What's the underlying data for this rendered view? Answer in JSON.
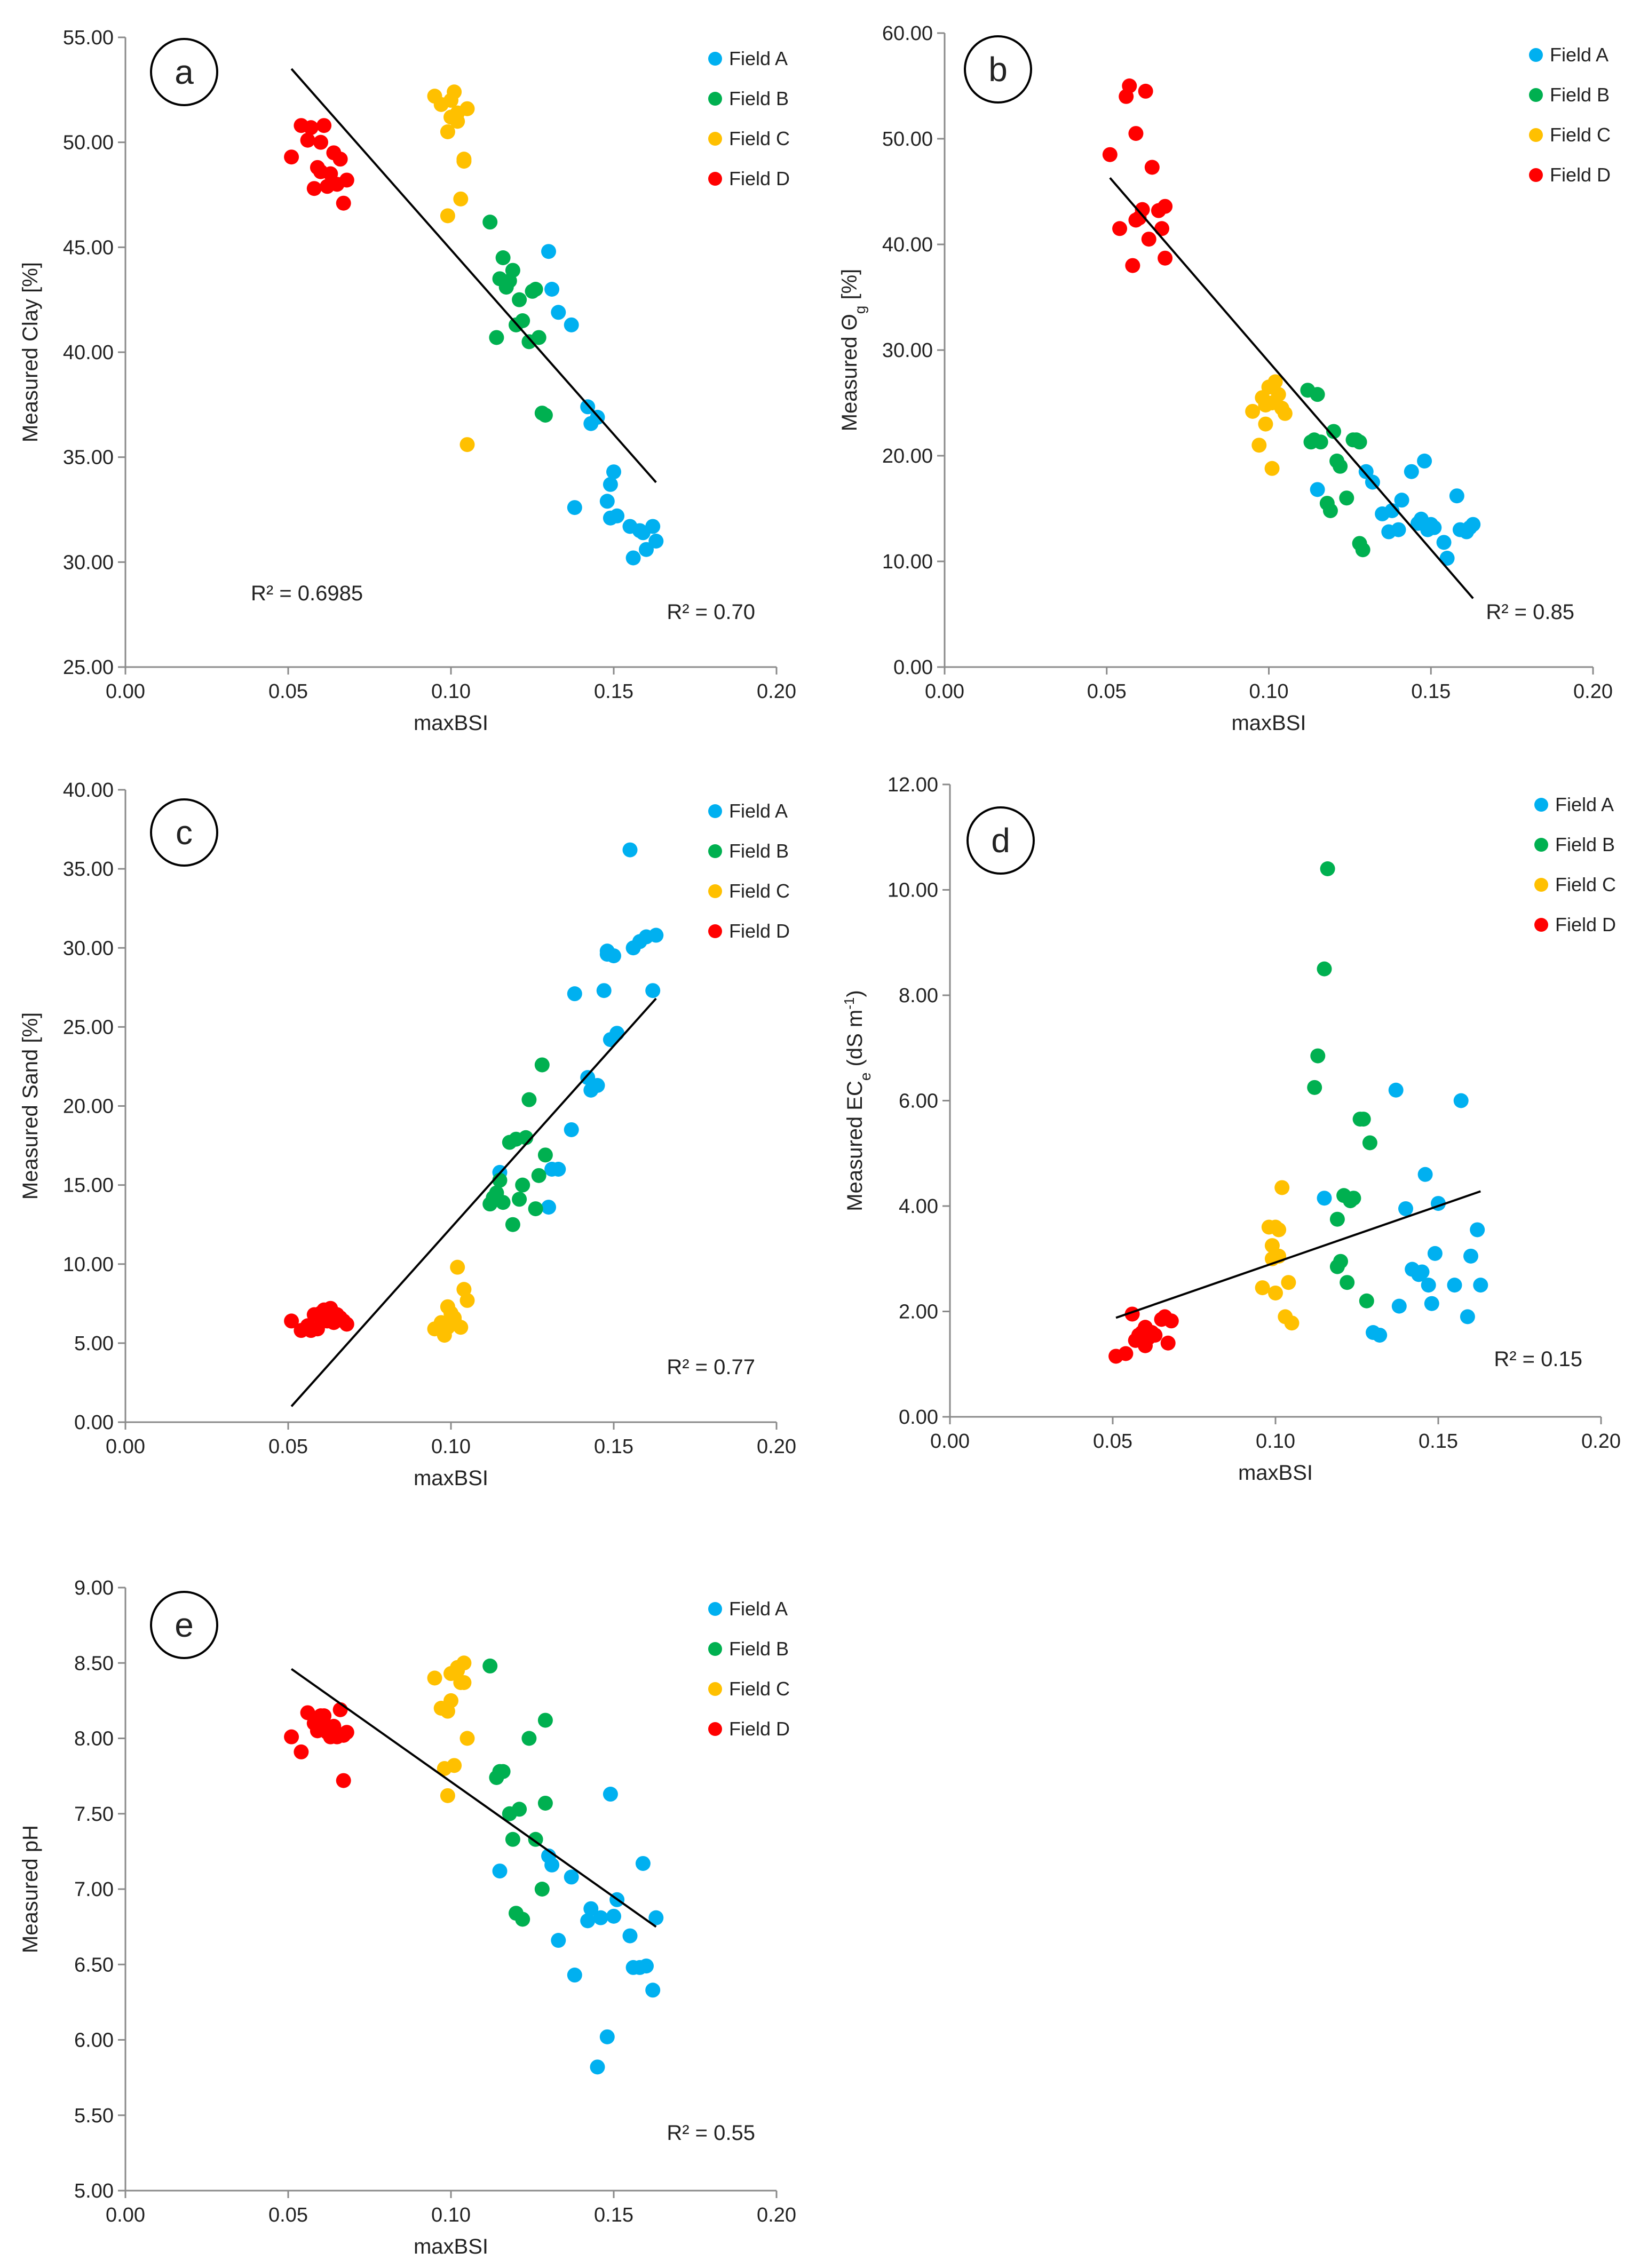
{
  "chart_data": [
    {
      "panel": "a",
      "type": "scatter",
      "xlabel": "maxBSI",
      "ylabel": "Measured Clay [%]",
      "ylabel_parts": [
        {
          "t": "Measured Clay [%]"
        }
      ],
      "xlim": [
        0,
        0.2
      ],
      "ylim": [
        25,
        55
      ],
      "xticks": [
        "0.00",
        "0.05",
        "0.10",
        "0.15",
        "0.20"
      ],
      "yticks": [
        "25.00",
        "30.00",
        "35.00",
        "40.00",
        "45.00",
        "50.00",
        "55.00"
      ],
      "legend": [
        "Field A",
        "Field B",
        "Field C",
        "Field D"
      ],
      "legend_pos": "top-right",
      "trendline": {
        "x": [
          0.051,
          0.163
        ],
        "y": [
          53.5,
          33.8
        ]
      },
      "annotations": [
        {
          "text": "R² = 0.70",
          "pos": "bottom-right"
        },
        {
          "text": "R² = 0.6985",
          "pos": "bottom-left"
        }
      ],
      "series": [
        {
          "name": "Field A",
          "x": [
            0.13,
            0.131,
            0.133,
            0.137,
            0.142,
            0.143,
            0.145,
            0.148,
            0.149,
            0.15,
            0.151,
            0.138,
            0.155,
            0.156,
            0.158,
            0.16,
            0.162,
            0.163,
            0.159,
            0.149
          ],
          "y": [
            44.8,
            43.0,
            41.9,
            41.3,
            37.4,
            36.6,
            36.9,
            32.9,
            33.7,
            34.3,
            32.2,
            32.6,
            31.7,
            30.2,
            31.5,
            30.6,
            31.7,
            31.0,
            31.4,
            32.1
          ]
        },
        {
          "name": "Field B",
          "x": [
            0.112,
            0.115,
            0.116,
            0.118,
            0.119,
            0.12,
            0.121,
            0.122,
            0.124,
            0.126,
            0.127,
            0.128,
            0.129,
            0.114,
            0.125,
            0.117
          ],
          "y": [
            46.2,
            43.5,
            44.5,
            43.4,
            43.9,
            41.3,
            42.5,
            41.5,
            40.5,
            43.0,
            40.7,
            37.1,
            37.0,
            40.7,
            42.9,
            43.1
          ]
        },
        {
          "name": "Field C",
          "x": [
            0.095,
            0.097,
            0.099,
            0.1,
            0.101,
            0.102,
            0.103,
            0.104,
            0.105,
            0.099,
            0.102,
            0.104,
            0.1,
            0.105
          ],
          "y": [
            52.2,
            51.8,
            50.5,
            51.2,
            52.4,
            51.0,
            47.3,
            49.2,
            51.6,
            46.5,
            51.4,
            49.1,
            52.0,
            35.6
          ]
        },
        {
          "name": "Field D",
          "x": [
            0.051,
            0.054,
            0.056,
            0.058,
            0.059,
            0.06,
            0.061,
            0.062,
            0.063,
            0.064,
            0.065,
            0.066,
            0.067,
            0.068,
            0.057,
            0.06
          ],
          "y": [
            49.3,
            50.8,
            50.1,
            47.8,
            48.8,
            50.0,
            50.8,
            47.9,
            48.5,
            49.5,
            48.0,
            49.2,
            47.1,
            48.2,
            50.7,
            48.6
          ]
        }
      ]
    },
    {
      "panel": "b",
      "type": "scatter",
      "xlabel": "maxBSI",
      "ylabel": "Measured Θg [%]",
      "ylabel_parts": [
        {
          "t": "Measured Θ"
        },
        {
          "t": "g",
          "sub": true
        },
        {
          "t": " [%]"
        }
      ],
      "xlim": [
        0,
        0.2
      ],
      "ylim": [
        0,
        60
      ],
      "xticks": [
        "0.00",
        "0.05",
        "0.10",
        "0.15",
        "0.20"
      ],
      "yticks": [
        "0.00",
        "10.00",
        "20.00",
        "30.00",
        "40.00",
        "50.00",
        "60.00"
      ],
      "legend": [
        "Field A",
        "Field B",
        "Field C",
        "Field D"
      ],
      "legend_pos": "top-right",
      "trendline": {
        "x": [
          0.051,
          0.163
        ],
        "y": [
          46.3,
          6.5
        ]
      },
      "annotations": [
        {
          "text": "R² = 0.85",
          "pos": "bottom-right"
        }
      ],
      "series": [
        {
          "name": "Field A",
          "x": [
            0.115,
            0.13,
            0.132,
            0.135,
            0.137,
            0.14,
            0.141,
            0.144,
            0.147,
            0.148,
            0.149,
            0.15,
            0.151,
            0.154,
            0.155,
            0.158,
            0.159,
            0.161,
            0.162,
            0.163,
            0.138,
            0.146
          ],
          "y": [
            16.8,
            18.5,
            17.5,
            14.5,
            12.8,
            13.0,
            15.8,
            18.5,
            14.0,
            19.5,
            13.0,
            13.5,
            13.2,
            11.8,
            10.3,
            16.2,
            13.0,
            12.8,
            13.2,
            13.5,
            14.8,
            13.6
          ]
        },
        {
          "name": "Field B",
          "x": [
            0.112,
            0.113,
            0.114,
            0.115,
            0.116,
            0.118,
            0.119,
            0.12,
            0.121,
            0.122,
            0.124,
            0.126,
            0.127,
            0.128,
            0.129,
            0.128
          ],
          "y": [
            26.2,
            21.3,
            21.5,
            25.8,
            21.3,
            15.5,
            14.8,
            22.3,
            19.5,
            19.0,
            16.0,
            21.5,
            21.5,
            11.7,
            11.1,
            21.3
          ]
        },
        {
          "name": "Field C",
          "x": [
            0.095,
            0.097,
            0.098,
            0.099,
            0.1,
            0.101,
            0.102,
            0.103,
            0.104,
            0.105,
            0.099,
            0.101
          ],
          "y": [
            24.2,
            21.0,
            25.5,
            23.0,
            26.5,
            18.8,
            27.0,
            25.8,
            24.5,
            24.0,
            24.8,
            25.0
          ]
        },
        {
          "name": "Field D",
          "x": [
            0.051,
            0.054,
            0.056,
            0.057,
            0.058,
            0.059,
            0.06,
            0.061,
            0.062,
            0.063,
            0.064,
            0.066,
            0.067,
            0.068,
            0.068,
            0.059
          ],
          "y": [
            48.5,
            41.5,
            54.0,
            55.0,
            38.0,
            50.5,
            42.5,
            43.3,
            54.5,
            40.5,
            47.3,
            43.2,
            41.5,
            38.7,
            43.6,
            42.3
          ]
        }
      ]
    },
    {
      "panel": "c",
      "type": "scatter",
      "xlabel": "maxBSI",
      "ylabel": "Measured Sand [%]",
      "ylabel_parts": [
        {
          "t": "Measured Sand [%]"
        }
      ],
      "xlim": [
        0,
        0.2
      ],
      "ylim": [
        0,
        40
      ],
      "xticks": [
        "0.00",
        "0.05",
        "0.10",
        "0.15",
        "0.20"
      ],
      "yticks": [
        "0.00",
        "5.00",
        "10.00",
        "15.00",
        "20.00",
        "25.00",
        "30.00",
        "35.00",
        "40.00"
      ],
      "legend": [
        "Field A",
        "Field B",
        "Field C",
        "Field D"
      ],
      "legend_pos": "top-right",
      "trendline": {
        "x": [
          0.051,
          0.163
        ],
        "y": [
          1.0,
          26.8
        ]
      },
      "annotations": [
        {
          "text": "R² = 0.77",
          "pos": "bottom-right"
        }
      ],
      "series": [
        {
          "name": "Field A",
          "x": [
            0.115,
            0.13,
            0.131,
            0.133,
            0.137,
            0.138,
            0.142,
            0.143,
            0.145,
            0.147,
            0.148,
            0.149,
            0.15,
            0.151,
            0.155,
            0.156,
            0.158,
            0.16,
            0.162,
            0.163,
            0.148
          ],
          "y": [
            15.8,
            13.6,
            16.0,
            16.0,
            18.5,
            27.1,
            21.8,
            21.0,
            21.3,
            27.3,
            29.8,
            24.2,
            29.5,
            24.6,
            36.2,
            30.0,
            30.4,
            30.7,
            27.3,
            30.8,
            29.6
          ]
        },
        {
          "name": "Field B",
          "x": [
            0.112,
            0.113,
            0.115,
            0.116,
            0.118,
            0.119,
            0.12,
            0.121,
            0.122,
            0.124,
            0.126,
            0.127,
            0.128,
            0.129,
            0.114,
            0.123
          ],
          "y": [
            13.8,
            14.2,
            15.3,
            13.9,
            17.7,
            12.5,
            17.9,
            14.1,
            15.0,
            20.4,
            13.5,
            15.6,
            22.6,
            16.9,
            14.5,
            18.0
          ]
        },
        {
          "name": "Field C",
          "x": [
            0.095,
            0.097,
            0.098,
            0.099,
            0.1,
            0.101,
            0.102,
            0.103,
            0.104,
            0.105,
            0.099,
            0.101
          ],
          "y": [
            5.9,
            6.3,
            5.5,
            7.3,
            6.9,
            6.5,
            9.8,
            6.0,
            8.4,
            7.7,
            6.0,
            6.6
          ]
        },
        {
          "name": "Field D",
          "x": [
            0.051,
            0.054,
            0.056,
            0.058,
            0.059,
            0.06,
            0.061,
            0.062,
            0.063,
            0.064,
            0.065,
            0.066,
            0.067,
            0.068,
            0.057,
            0.06
          ],
          "y": [
            6.4,
            5.8,
            6.1,
            6.8,
            5.9,
            6.9,
            7.1,
            6.4,
            7.2,
            6.3,
            6.8,
            6.6,
            6.4,
            6.2,
            5.8,
            6.6
          ]
        }
      ]
    },
    {
      "panel": "d",
      "type": "scatter",
      "xlabel": "maxBSI",
      "ylabel": "Measured ECe (dS m-1)",
      "ylabel_parts": [
        {
          "t": "Measured EC"
        },
        {
          "t": "e",
          "sub": true
        },
        {
          "t": " (dS m"
        },
        {
          "t": "-1",
          "sup": true
        },
        {
          "t": ")"
        }
      ],
      "xlim": [
        0,
        0.2
      ],
      "ylim": [
        0,
        12
      ],
      "xticks": [
        "0.00",
        "0.05",
        "0.10",
        "0.15",
        "0.20"
      ],
      "yticks": [
        "0.00",
        "2.00",
        "4.00",
        "6.00",
        "8.00",
        "10.00",
        "12.00"
      ],
      "legend": [
        "Field A",
        "Field B",
        "Field C",
        "Field D"
      ],
      "legend_pos": "top-right",
      "trendline": {
        "x": [
          0.051,
          0.163
        ],
        "y": [
          1.88,
          4.28
        ]
      },
      "annotations": [
        {
          "text": "R² = 0.15",
          "pos": "bottom-right"
        }
      ],
      "series": [
        {
          "name": "Field A",
          "x": [
            0.115,
            0.13,
            0.132,
            0.137,
            0.138,
            0.14,
            0.142,
            0.144,
            0.146,
            0.147,
            0.148,
            0.149,
            0.15,
            0.155,
            0.157,
            0.159,
            0.16,
            0.162,
            0.163,
            0.145
          ],
          "y": [
            4.15,
            1.6,
            1.55,
            6.2,
            2.1,
            3.95,
            2.8,
            2.7,
            4.6,
            2.5,
            2.15,
            3.1,
            4.05,
            2.5,
            6.0,
            1.9,
            3.05,
            3.55,
            2.5,
            2.75
          ]
        },
        {
          "name": "Field B",
          "x": [
            0.112,
            0.113,
            0.115,
            0.116,
            0.119,
            0.12,
            0.121,
            0.122,
            0.124,
            0.126,
            0.127,
            0.128,
            0.129,
            0.119,
            0.123
          ],
          "y": [
            6.25,
            6.85,
            8.5,
            10.4,
            2.85,
            2.95,
            4.2,
            2.55,
            4.15,
            5.65,
            5.65,
            2.2,
            5.2,
            3.75,
            4.1
          ]
        },
        {
          "name": "Field C",
          "x": [
            0.096,
            0.098,
            0.099,
            0.1,
            0.101,
            0.102,
            0.103,
            0.104,
            0.105,
            0.099,
            0.101,
            0.1
          ],
          "y": [
            2.45,
            3.6,
            3.25,
            2.35,
            3.55,
            4.35,
            1.9,
            2.55,
            1.78,
            3.0,
            3.05,
            3.6
          ]
        },
        {
          "name": "Field D",
          "x": [
            0.051,
            0.054,
            0.056,
            0.057,
            0.058,
            0.059,
            0.06,
            0.061,
            0.062,
            0.063,
            0.065,
            0.066,
            0.067,
            0.068,
            0.06
          ],
          "y": [
            1.15,
            1.2,
            1.95,
            1.45,
            1.55,
            1.6,
            1.35,
            1.5,
            1.6,
            1.55,
            1.85,
            1.9,
            1.4,
            1.82,
            1.7
          ]
        }
      ]
    },
    {
      "panel": "e",
      "type": "scatter",
      "xlabel": "maxBSI",
      "ylabel": "Measured pH",
      "ylabel_parts": [
        {
          "t": "Measured pH"
        }
      ],
      "xlim": [
        0,
        0.2
      ],
      "ylim": [
        5,
        9
      ],
      "xticks": [
        "0.00",
        "0.05",
        "0.10",
        "0.15",
        "0.20"
      ],
      "yticks": [
        "5.00",
        "5.50",
        "6.00",
        "6.50",
        "7.00",
        "7.50",
        "8.00",
        "8.50",
        "9.00"
      ],
      "legend": [
        "Field A",
        "Field B",
        "Field C",
        "Field D"
      ],
      "legend_pos": "top-right",
      "trendline": {
        "x": [
          0.051,
          0.163
        ],
        "y": [
          8.46,
          6.75
        ]
      },
      "annotations": [
        {
          "text": "R² = 0.55",
          "pos": "bottom-right"
        }
      ],
      "series": [
        {
          "name": "Field A",
          "x": [
            0.115,
            0.13,
            0.131,
            0.133,
            0.137,
            0.138,
            0.142,
            0.143,
            0.145,
            0.146,
            0.148,
            0.149,
            0.15,
            0.151,
            0.155,
            0.156,
            0.158,
            0.159,
            0.16,
            0.162,
            0.163
          ],
          "y": [
            7.12,
            7.22,
            7.16,
            6.66,
            7.08,
            6.43,
            6.79,
            6.87,
            5.82,
            6.81,
            6.02,
            7.63,
            6.82,
            6.93,
            6.69,
            6.48,
            6.48,
            7.17,
            6.49,
            6.33,
            6.81
          ]
        },
        {
          "name": "Field B",
          "x": [
            0.112,
            0.114,
            0.115,
            0.116,
            0.119,
            0.12,
            0.121,
            0.122,
            0.124,
            0.126,
            0.128,
            0.129,
            0.129,
            0.118
          ],
          "y": [
            8.48,
            7.74,
            7.78,
            7.78,
            7.33,
            6.84,
            7.53,
            6.8,
            8.0,
            7.33,
            7.0,
            8.12,
            7.57,
            7.5
          ]
        },
        {
          "name": "Field C",
          "x": [
            0.095,
            0.097,
            0.098,
            0.099,
            0.1,
            0.101,
            0.102,
            0.103,
            0.104,
            0.105,
            0.099,
            0.1,
            0.102,
            0.104
          ],
          "y": [
            8.4,
            8.2,
            7.8,
            7.62,
            8.43,
            7.82,
            8.47,
            8.37,
            8.5,
            8.0,
            8.18,
            8.25,
            8.45,
            8.37
          ]
        },
        {
          "name": "Field D",
          "x": [
            0.051,
            0.054,
            0.056,
            0.058,
            0.059,
            0.06,
            0.061,
            0.062,
            0.063,
            0.064,
            0.065,
            0.066,
            0.067,
            0.068,
            0.06,
            0.067
          ],
          "y": [
            8.01,
            7.91,
            8.17,
            8.1,
            8.05,
            8.15,
            8.15,
            8.04,
            8.01,
            8.08,
            8.01,
            8.19,
            7.72,
            8.04,
            8.1,
            8.02
          ]
        }
      ]
    }
  ],
  "colors": {
    "Field A": "#00b0f0",
    "Field B": "#00b050",
    "Field C": "#ffc000",
    "Field D": "#ff0000"
  }
}
